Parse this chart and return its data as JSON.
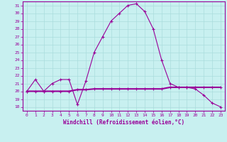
{
  "xlabel": "Windchill (Refroidissement éolien,°C)",
  "ylabel": "",
  "xlim": [
    -0.5,
    23.5
  ],
  "ylim": [
    17.5,
    31.5
  ],
  "yticks": [
    18,
    19,
    20,
    21,
    22,
    23,
    24,
    25,
    26,
    27,
    28,
    29,
    30,
    31
  ],
  "xticks": [
    0,
    1,
    2,
    3,
    4,
    5,
    6,
    7,
    8,
    9,
    10,
    11,
    12,
    13,
    14,
    15,
    16,
    17,
    18,
    19,
    20,
    21,
    22,
    23
  ],
  "line1_x": [
    0,
    1,
    2,
    3,
    4,
    5,
    6,
    7,
    8,
    9,
    10,
    11,
    12,
    13,
    14,
    15,
    16,
    17,
    18,
    19,
    20,
    21,
    22,
    23
  ],
  "line1_y": [
    20.0,
    21.5,
    20.0,
    21.0,
    21.5,
    21.5,
    18.3,
    21.3,
    25.0,
    27.0,
    29.0,
    30.0,
    31.0,
    31.2,
    30.2,
    28.0,
    24.0,
    21.0,
    20.5,
    20.5,
    20.3,
    19.5,
    18.5,
    18.0
  ],
  "line2_x": [
    0,
    1,
    2,
    3,
    4,
    5,
    6,
    7,
    8,
    9,
    10,
    11,
    12,
    13,
    14,
    15,
    16,
    17,
    18,
    19,
    20,
    21,
    22,
    23
  ],
  "line2_y": [
    20.0,
    20.0,
    20.0,
    20.0,
    20.0,
    20.0,
    20.2,
    20.2,
    20.3,
    20.3,
    20.3,
    20.3,
    20.3,
    20.3,
    20.3,
    20.3,
    20.3,
    20.5,
    20.5,
    20.5,
    20.5,
    20.5,
    20.5,
    20.5
  ],
  "line_color": "#990099",
  "bg_color": "#c8f0f0",
  "grid_color": "#aadddd",
  "marker": "+",
  "marker_size": 3,
  "linewidth1": 0.8,
  "linewidth2": 1.5,
  "tick_fontsize": 4.5,
  "xlabel_fontsize": 5.5
}
